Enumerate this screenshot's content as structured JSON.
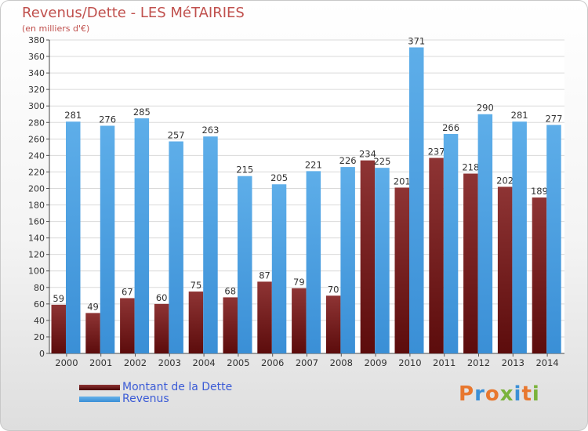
{
  "header": {
    "title": "Revenus/Dette - LES MéTAIRIES",
    "subtitle": "(en milliers d'€)"
  },
  "chart_data": {
    "type": "bar",
    "categories": [
      "2000",
      "2001",
      "2002",
      "2003",
      "2004",
      "2005",
      "2006",
      "2007",
      "2008",
      "2009",
      "2010",
      "2011",
      "2012",
      "2013",
      "2014"
    ],
    "series": [
      {
        "name": "Montant de la Dette",
        "color": "#7a1c1c",
        "values": [
          59,
          49,
          67,
          60,
          75,
          68,
          87,
          79,
          70,
          234,
          201,
          237,
          218,
          202,
          189
        ]
      },
      {
        "name": "Revenus",
        "color": "#4ea0e0",
        "values": [
          281,
          276,
          285,
          257,
          263,
          215,
          205,
          221,
          226,
          225,
          371,
          266,
          290,
          281,
          277
        ]
      }
    ],
    "ylim": [
      0,
      380
    ],
    "yticks": [
      0,
      20,
      40,
      60,
      80,
      100,
      120,
      140,
      160,
      180,
      200,
      220,
      240,
      260,
      280,
      300,
      320,
      340,
      360,
      380
    ],
    "grid": true,
    "legend_position": "bottom-left"
  },
  "logo": {
    "text": "Proxiti"
  }
}
